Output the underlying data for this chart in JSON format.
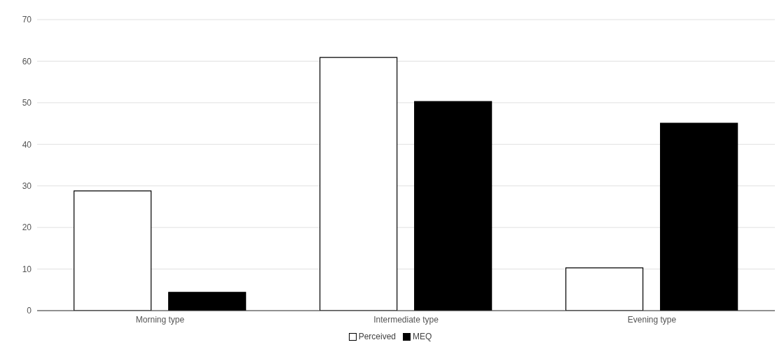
{
  "chart_data": {
    "type": "bar",
    "categories": [
      "Morning type",
      "Intermediate type",
      "Evening type"
    ],
    "series": [
      {
        "name": "Perceived",
        "color": "#ffffff",
        "values": [
          28.8,
          60.9,
          10.3
        ]
      },
      {
        "name": "MEQ",
        "color": "#000000",
        "values": [
          4.4,
          50.3,
          45.1
        ]
      }
    ],
    "ylim": [
      0,
      70
    ],
    "yticks": [
      0,
      10,
      20,
      30,
      40,
      50,
      60,
      70
    ],
    "grid": "y",
    "legend": "bottom"
  }
}
